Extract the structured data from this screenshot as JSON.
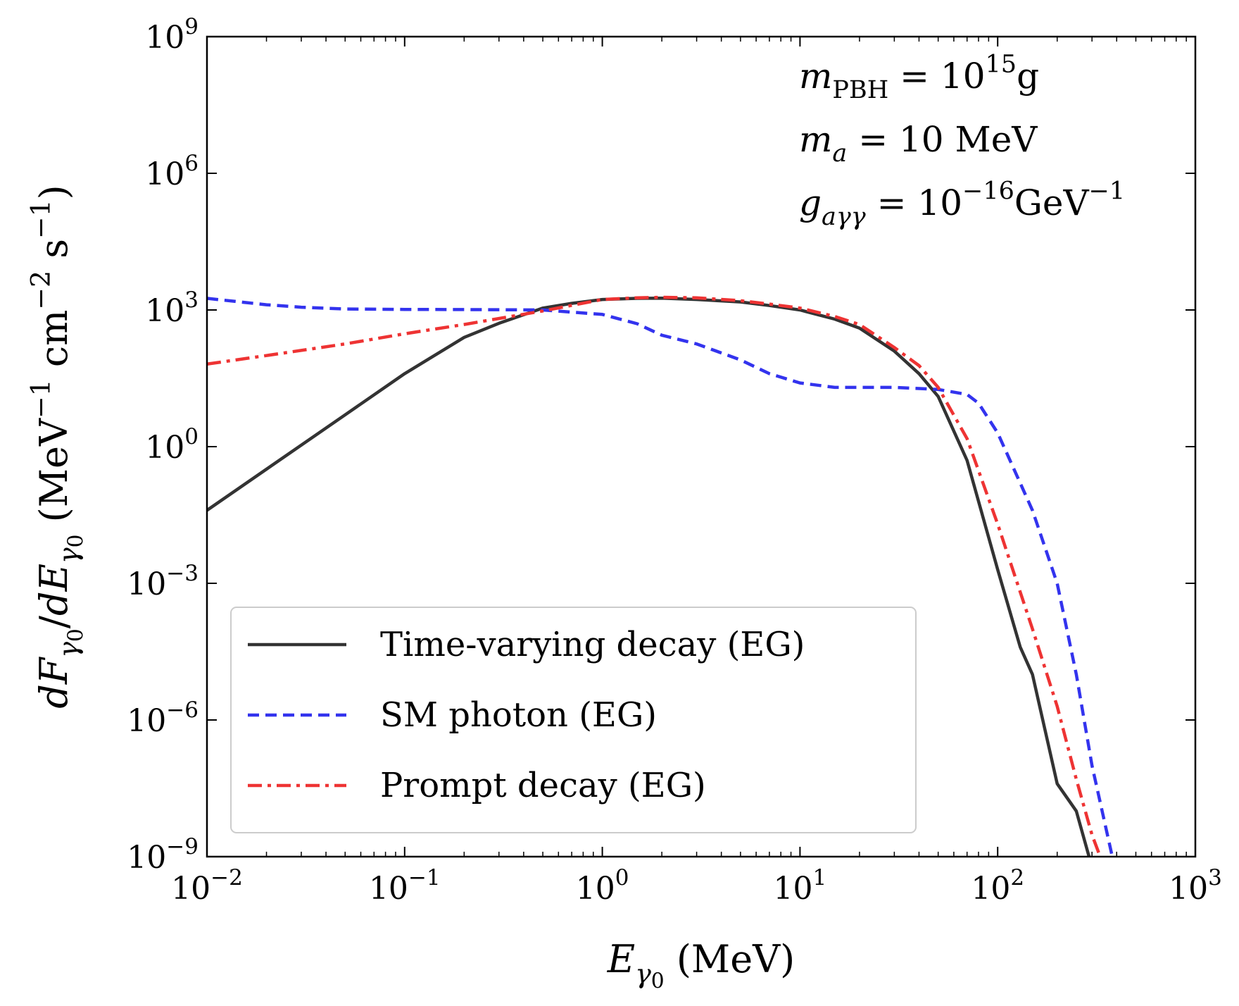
{
  "chart_data": {
    "type": "line",
    "x_scale": "log",
    "y_scale": "log",
    "xlim": [
      0.01,
      1000
    ],
    "ylim": [
      1e-09,
      1000000000.0
    ],
    "xlabel": {
      "parts": [
        {
          "t": "E",
          "style": "italic",
          "shift": "base"
        },
        {
          "t": "γ",
          "style": "italic",
          "shift": "sub"
        },
        {
          "t": "0",
          "style": "normal",
          "shift": "subsub"
        },
        {
          "t": " (MeV)",
          "style": "normal",
          "shift": "base"
        }
      ]
    },
    "ylabel": {
      "parts": [
        {
          "t": "dF",
          "style": "italic",
          "shift": "base"
        },
        {
          "t": "γ",
          "style": "italic",
          "shift": "sub"
        },
        {
          "t": "0",
          "style": "normal",
          "shift": "subsub"
        },
        {
          "t": "/",
          "style": "normal",
          "shift": "base"
        },
        {
          "t": "dE",
          "style": "italic",
          "shift": "base"
        },
        {
          "t": "γ",
          "style": "italic",
          "shift": "sub"
        },
        {
          "t": "0",
          "style": "normal",
          "shift": "subsub"
        },
        {
          "t": " (MeV",
          "style": "normal",
          "shift": "base"
        },
        {
          "t": "−1",
          "style": "normal",
          "shift": "sup"
        },
        {
          "t": " cm",
          "style": "normal",
          "shift": "base"
        },
        {
          "t": "−2",
          "style": "normal",
          "shift": "sup"
        },
        {
          "t": " s",
          "style": "normal",
          "shift": "base"
        },
        {
          "t": "−1",
          "style": "normal",
          "shift": "sup"
        },
        {
          "t": ")",
          "style": "normal",
          "shift": "base"
        }
      ]
    },
    "x_ticks": [
      {
        "value": 0.01,
        "base": "10",
        "exp": "−2"
      },
      {
        "value": 0.1,
        "base": "10",
        "exp": "−1"
      },
      {
        "value": 1,
        "base": "10",
        "exp": "0"
      },
      {
        "value": 10,
        "base": "10",
        "exp": "1"
      },
      {
        "value": 100,
        "base": "10",
        "exp": "2"
      },
      {
        "value": 1000,
        "base": "10",
        "exp": "3"
      }
    ],
    "y_ticks": [
      {
        "value": 1e-09,
        "base": "10",
        "exp": "−9"
      },
      {
        "value": 1e-06,
        "base": "10",
        "exp": "−6"
      },
      {
        "value": 0.001,
        "base": "10",
        "exp": "−3"
      },
      {
        "value": 1,
        "base": "10",
        "exp": "0"
      },
      {
        "value": 1000.0,
        "base": "10",
        "exp": "3"
      },
      {
        "value": 1000000.0,
        "base": "10",
        "exp": "6"
      },
      {
        "value": 1000000000.0,
        "base": "10",
        "exp": "9"
      }
    ],
    "annotations": [
      {
        "parts": [
          {
            "t": "m",
            "style": "italic",
            "shift": "base"
          },
          {
            "t": "PBH",
            "style": "normal",
            "shift": "sub"
          },
          {
            "t": " = 10",
            "style": "normal",
            "shift": "base"
          },
          {
            "t": "15",
            "style": "normal",
            "shift": "sup"
          },
          {
            "t": "g",
            "style": "normal",
            "shift": "base"
          }
        ]
      },
      {
        "parts": [
          {
            "t": "m",
            "style": "italic",
            "shift": "base"
          },
          {
            "t": "a",
            "style": "italic",
            "shift": "sub"
          },
          {
            "t": " = 10 MeV",
            "style": "normal",
            "shift": "base"
          }
        ]
      },
      {
        "parts": [
          {
            "t": "g",
            "style": "italic",
            "shift": "base"
          },
          {
            "t": "aγγ",
            "style": "italic",
            "shift": "sub"
          },
          {
            "t": " = 10",
            "style": "normal",
            "shift": "base"
          },
          {
            "t": "−16",
            "style": "normal",
            "shift": "sup"
          },
          {
            "t": "GeV",
            "style": "normal",
            "shift": "base"
          },
          {
            "t": "−1",
            "style": "normal",
            "shift": "sup"
          }
        ]
      }
    ],
    "legend_position": "lower-left",
    "series": [
      {
        "name": "Time-varying decay (EG)",
        "color": "#333333",
        "dash": "solid",
        "x": [
          0.01,
          0.02,
          0.05,
          0.1,
          0.2,
          0.3,
          0.5,
          0.7,
          1,
          1.5,
          2,
          3,
          5,
          7,
          10,
          15,
          20,
          30,
          40,
          50,
          70,
          100,
          130,
          150,
          180,
          200,
          250,
          290
        ],
        "y": [
          0.04,
          0.32,
          5,
          40,
          250,
          510,
          1100,
          1400,
          1700,
          1800,
          1820,
          1700,
          1500,
          1250,
          1000,
          630,
          400,
          125,
          40,
          12.6,
          0.5,
          0.002,
          4e-05,
          1e-05,
          3e-07,
          4e-08,
          1e-08,
          1e-09
        ]
      },
      {
        "name": "SM photon (EG)",
        "color": "#3333ee",
        "dash": "dashed",
        "x": [
          0.01,
          0.02,
          0.03,
          0.05,
          0.1,
          0.2,
          0.5,
          1,
          1.5,
          2,
          3,
          5,
          7,
          10,
          15,
          20,
          30,
          50,
          70,
          80,
          100,
          150,
          200,
          250,
          300,
          380
        ],
        "y": [
          1800,
          1300,
          1150,
          1050,
          1030,
          1020,
          1000,
          800,
          500,
          280,
          180,
          80,
          40,
          25,
          20,
          20,
          20,
          18,
          14,
          9,
          2,
          0.04,
          0.001,
          1e-05,
          1e-07,
          1e-09
        ]
      },
      {
        "name": "Prompt decay (EG)",
        "color": "#ee3333",
        "dash": "dashdot",
        "x": [
          0.01,
          0.02,
          0.05,
          0.1,
          0.2,
          0.5,
          1,
          1.5,
          2,
          3,
          5,
          7,
          10,
          15,
          20,
          30,
          40,
          50,
          70,
          100,
          150,
          200,
          250,
          300,
          330
        ],
        "y": [
          65,
          100,
          180,
          300,
          480,
          950,
          1700,
          1850,
          1900,
          1850,
          1600,
          1350,
          1100,
          720,
          480,
          150,
          60,
          20,
          1.5,
          0.02,
          0.0001,
          2e-06,
          5e-08,
          3e-09,
          1e-09
        ]
      }
    ]
  }
}
